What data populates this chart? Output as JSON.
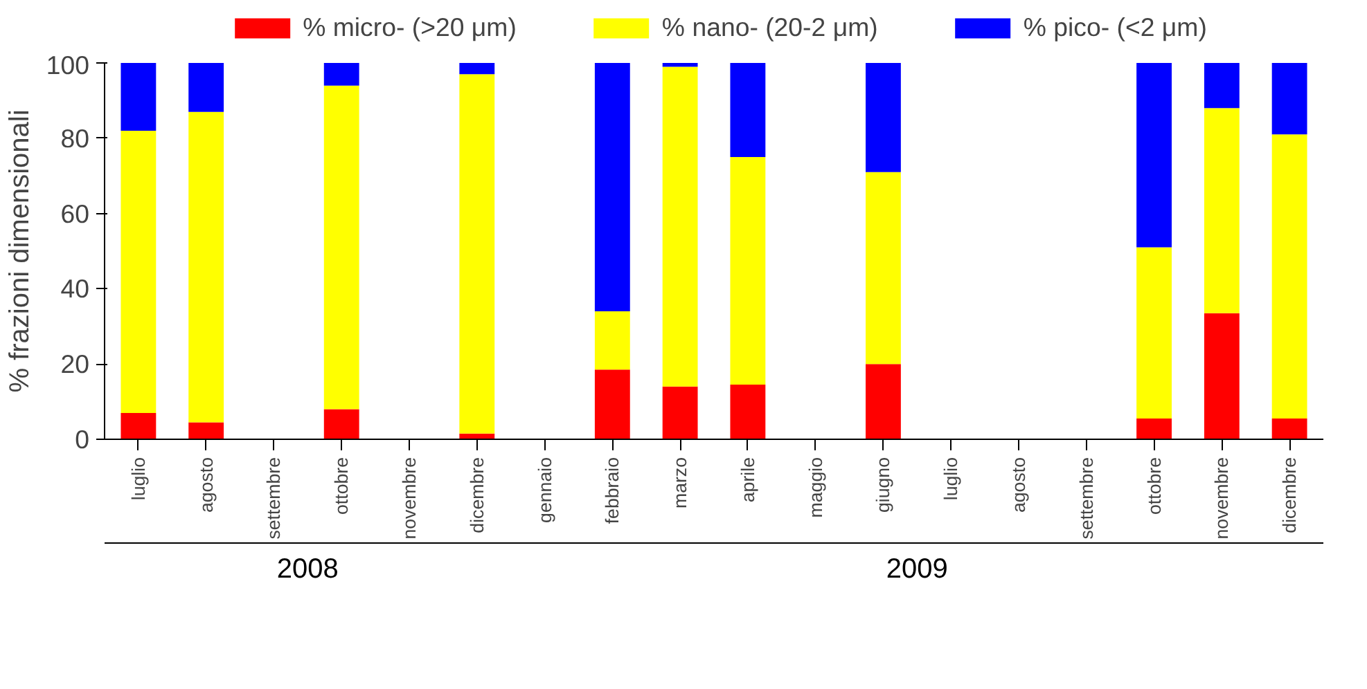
{
  "chart_data": {
    "type": "bar",
    "stacked": true,
    "ylabel": "% frazioni dimensionali",
    "categories": [
      "luglio",
      "agosto",
      "settembre",
      "ottobre",
      "novembre",
      "dicembre",
      "gennaio",
      "febbraio",
      "marzo",
      "aprile",
      "maggio",
      "giugno",
      "luglio",
      "agosto",
      "settembre",
      "ottobre",
      "novembre",
      "dicembre"
    ],
    "series": [
      {
        "name": "% micro- (>20 μm)",
        "color": "#ff0000",
        "values": [
          7,
          4.5,
          null,
          8,
          null,
          1.5,
          null,
          18.5,
          14,
          14.5,
          null,
          20,
          null,
          null,
          null,
          5.5,
          33.5,
          5.5
        ]
      },
      {
        "name": "% nano- (20-2 μm)",
        "color": "#ffff00",
        "values": [
          75,
          82.5,
          null,
          86,
          null,
          95.5,
          null,
          15.5,
          85,
          60.5,
          null,
          51,
          null,
          null,
          null,
          45.5,
          54.5,
          75.5
        ]
      },
      {
        "name": "% pico- (<2 μm)",
        "color": "#0000ff",
        "values": [
          18,
          13,
          null,
          6,
          null,
          3,
          null,
          66,
          1,
          25,
          null,
          29,
          null,
          null,
          null,
          49,
          12,
          19
        ]
      }
    ],
    "ylim": [
      0,
      100
    ],
    "yticks": [
      0,
      20,
      40,
      60,
      80,
      100
    ],
    "grid": false,
    "legend": "top",
    "annotations": [
      "2008",
      "2009"
    ]
  }
}
